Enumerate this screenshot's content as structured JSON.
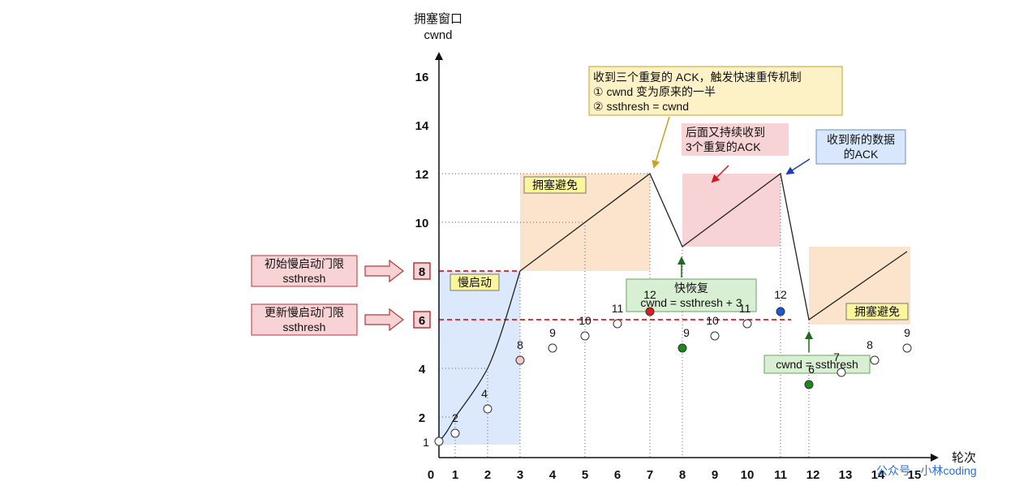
{
  "y_axis": {
    "title_line1": "拥塞窗口",
    "title_line2": "cwnd",
    "ticks": [
      "2",
      "4",
      "10",
      "12",
      "14",
      "16"
    ]
  },
  "x_axis": {
    "title": "轮次",
    "ticks": [
      "0",
      "1",
      "2",
      "3",
      "4",
      "5",
      "6",
      "7",
      "8",
      "9",
      "10",
      "11",
      "12",
      "13",
      "14",
      "15"
    ]
  },
  "threshold_boxes": [
    {
      "value": "8",
      "label_line1": "初始慢启动门限",
      "label_line2": "ssthresh"
    },
    {
      "value": "6",
      "label_line1": "更新慢启动门限",
      "label_line2": "ssthresh"
    }
  ],
  "phase_labels": {
    "slow_start": "慢启动",
    "congestion_avoidance_1": "拥塞避免",
    "congestion_avoidance_2": "拥塞避免"
  },
  "callouts": {
    "triple_ack": {
      "line1": "收到三个重复的 ACK，触发快速重传机制",
      "line2": "① cwnd 变为原来的一半",
      "line3": "② ssthresh = cwnd"
    },
    "again_triple_ack": {
      "line1": "后面又持续收到",
      "line2": "3个重复的ACK"
    },
    "new_ack": {
      "line1": "收到新的数据",
      "line2": "的ACK"
    },
    "fast_recovery": {
      "line1": "快恢复",
      "line2": "cwnd = ssthresh + 3"
    },
    "set_cwnd": {
      "line1": "cwnd = ssthresh"
    }
  },
  "points": [
    {
      "round": 0,
      "cwnd": 1,
      "label": "1",
      "color": "#ffffff"
    },
    {
      "round": 1,
      "cwnd": 2,
      "label": "2",
      "color": "#ffffff"
    },
    {
      "round": 2,
      "cwnd": 4,
      "label": "4",
      "color": "#ffffff"
    },
    {
      "round": 3,
      "cwnd": 8,
      "label": "8",
      "color": "#f8c8c8"
    },
    {
      "round": 4,
      "cwnd": 9,
      "label": "9",
      "color": "#ffffff"
    },
    {
      "round": 5,
      "cwnd": 10,
      "label": "10",
      "color": "#ffffff"
    },
    {
      "round": 6,
      "cwnd": 11,
      "label": "11",
      "color": "#ffffff"
    },
    {
      "round": 7,
      "cwnd": 12,
      "label": "12",
      "color": "#e21b1b"
    },
    {
      "round": 8,
      "cwnd": 9,
      "label": "9",
      "color": "#1a8a1a"
    },
    {
      "round": 9,
      "cwnd": 10,
      "label": "10",
      "color": "#ffffff"
    },
    {
      "round": 10,
      "cwnd": 11,
      "label": "11",
      "color": "#ffffff"
    },
    {
      "round": 11,
      "cwnd": 12,
      "label": "12",
      "color": "#1f55d8"
    },
    {
      "round": 12,
      "cwnd": 6,
      "label": "6",
      "color": "#1a8a1a"
    },
    {
      "round": 13,
      "cwnd": 7,
      "label": "7",
      "color": "#ffffff"
    },
    {
      "round": 14,
      "cwnd": 8,
      "label": "8",
      "color": "#ffffff"
    },
    {
      "round": 15,
      "cwnd": 9,
      "label": "9",
      "color": "#ffffff"
    }
  ],
  "watermark": "公众号 · 小林coding",
  "colors": {
    "slow_start_bg": "#dce8fb",
    "avoidance_bg": "#fbe3cc",
    "fast_recovery_bg": "#f8d3d5",
    "threshold_line": "#e8323a",
    "label_yellow": "#fbf59b"
  }
}
